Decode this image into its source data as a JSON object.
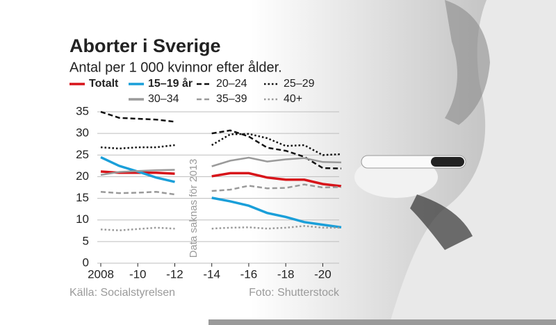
{
  "chart_data": {
    "type": "line",
    "title": "Aborter i Sverige",
    "subtitle": "Antal per 1 000 kvinnor efter ålder.",
    "annotation": "Data saknas för 2013",
    "source": "Källa: Socialstyrelsen",
    "photo_credit": "Foto: Shutterstock",
    "x": [
      2008,
      2009,
      2010,
      2011,
      2012,
      2013,
      2014,
      2015,
      2016,
      2017,
      2018,
      2019,
      2020,
      2021
    ],
    "xlim": [
      2008,
      2021
    ],
    "xticks": [
      2008,
      {
        "value": 2010,
        "label": "-10"
      },
      {
        "value": 2012,
        "label": "-12"
      },
      {
        "value": 2014,
        "label": "-14"
      },
      {
        "value": 2016,
        "label": "-16"
      },
      {
        "value": 2018,
        "label": "-18"
      },
      {
        "value": 2020,
        "label": "-20"
      }
    ],
    "ylim": [
      0,
      35
    ],
    "yticks": [
      0,
      5,
      10,
      15,
      20,
      25,
      30,
      35
    ],
    "grid": true,
    "series": [
      {
        "name": "Totalt",
        "color": "#d7141a",
        "style": "solid",
        "values": [
          21.2,
          20.9,
          20.9,
          20.9,
          20.7,
          null,
          20.1,
          20.8,
          20.8,
          19.8,
          19.3,
          19.3,
          18.3,
          17.8
        ]
      },
      {
        "name": "15–19 år",
        "color": "#1a9fd9",
        "style": "solid",
        "values": [
          24.5,
          22.5,
          21.2,
          19.8,
          18.8,
          null,
          15.1,
          14.3,
          13.3,
          11.6,
          10.7,
          9.5,
          8.9,
          8.3
        ]
      },
      {
        "name": "20–24",
        "color": "#111111",
        "style": "dashed",
        "values": [
          35.0,
          33.6,
          33.4,
          33.2,
          32.7,
          null,
          30.0,
          30.7,
          29.3,
          26.7,
          26.0,
          24.6,
          22.0,
          21.9
        ]
      },
      {
        "name": "25–29",
        "color": "#111111",
        "style": "dotted",
        "values": [
          26.8,
          26.5,
          26.8,
          26.8,
          27.3,
          null,
          27.3,
          29.8,
          29.9,
          28.9,
          27.1,
          27.3,
          25.0,
          25.2
        ]
      },
      {
        "name": "30–34",
        "color": "#9a9a9a",
        "style": "solid",
        "values": [
          20.4,
          21.1,
          21.3,
          21.5,
          21.6,
          null,
          22.4,
          23.7,
          24.4,
          23.5,
          24.0,
          24.3,
          23.4,
          23.3
        ]
      },
      {
        "name": "35–39",
        "color": "#9a9a9a",
        "style": "dashed",
        "values": [
          16.5,
          16.2,
          16.3,
          16.5,
          15.9,
          null,
          16.7,
          17.0,
          17.9,
          17.3,
          17.4,
          18.2,
          17.5,
          17.6
        ]
      },
      {
        "name": "40+",
        "color": "#9a9a9a",
        "style": "dotted",
        "values": [
          7.8,
          7.6,
          7.9,
          8.2,
          8.0,
          null,
          8.0,
          8.2,
          8.3,
          8.0,
          8.2,
          8.6,
          8.2,
          8.2
        ]
      }
    ]
  }
}
